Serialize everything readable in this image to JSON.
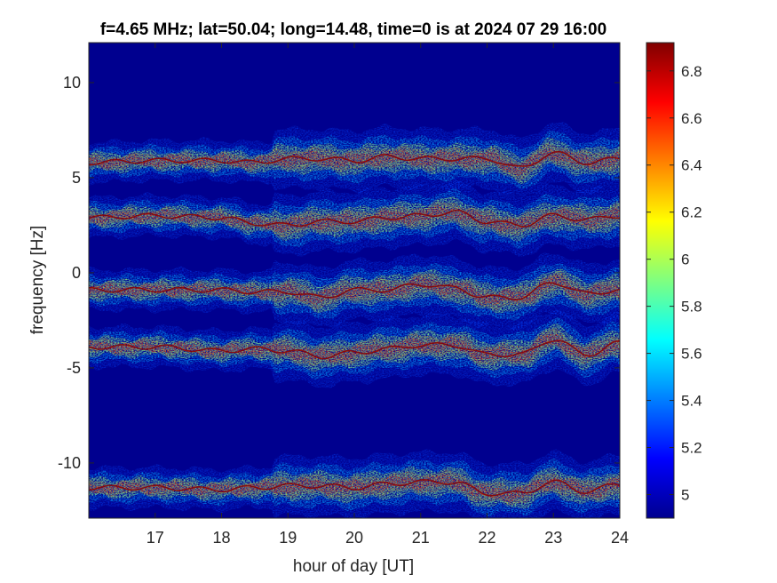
{
  "chart_data": {
    "type": "heatmap",
    "title": "f=4.65 MHz;  lat=50.04; long=14.48, time=0 is at 2024 07 29 16:00",
    "xlabel": "hour of day [UT]",
    "ylabel": "frequency [Hz]",
    "xlim": [
      16,
      24
    ],
    "ylim": [
      -12.9,
      12.1
    ],
    "x_ticks": [
      17,
      18,
      19,
      20,
      21,
      22,
      23,
      24
    ],
    "y_ticks": [
      10,
      5,
      0,
      -5,
      -10
    ],
    "colorbar": {
      "colormap": "jet",
      "clim": [
        4.9,
        6.92
      ],
      "ticks": [
        5,
        5.2,
        5.4,
        5.6,
        5.8,
        6,
        6.2,
        6.4,
        6.6,
        6.8
      ]
    },
    "series": [
      {
        "x": [
          16.0,
          17.0,
          18.0,
          18.5,
          19.0,
          19.5,
          20.0,
          20.5,
          21.0,
          21.5,
          22.0,
          22.5,
          23.0,
          23.5,
          24.0
        ],
        "y": [
          5.8,
          5.9,
          5.9,
          5.8,
          6.0,
          6.0,
          5.9,
          6.1,
          6.0,
          6.0,
          6.0,
          5.5,
          6.3,
          5.8,
          6.0
        ]
      },
      {
        "x": [
          16.0,
          17.0,
          18.0,
          18.5,
          19.0,
          19.5,
          20.0,
          20.5,
          21.0,
          21.5,
          22.0,
          22.5,
          23.0,
          23.5,
          24.0
        ],
        "y": [
          2.9,
          3.0,
          2.9,
          2.6,
          2.5,
          2.7,
          2.7,
          2.9,
          3.0,
          3.2,
          2.7,
          2.5,
          3.0,
          2.8,
          3.0
        ]
      },
      {
        "x": [
          16.0,
          17.0,
          18.0,
          18.5,
          19.0,
          19.5,
          20.0,
          20.5,
          21.0,
          21.5,
          22.0,
          22.5,
          23.0,
          23.5,
          24.0
        ],
        "y": [
          -0.9,
          -0.9,
          -0.9,
          -1.0,
          -1.0,
          -1.3,
          -0.9,
          -0.9,
          -0.6,
          -0.8,
          -1.3,
          -1.3,
          -0.5,
          -1.1,
          -0.9
        ]
      },
      {
        "x": [
          16.0,
          17.0,
          18.0,
          18.5,
          19.0,
          19.5,
          20.0,
          20.5,
          21.0,
          21.5,
          22.0,
          22.5,
          23.0,
          23.5,
          24.0
        ],
        "y": [
          -3.9,
          -3.9,
          -4.1,
          -4.0,
          -4.1,
          -4.4,
          -4.2,
          -4.0,
          -3.8,
          -3.8,
          -4.3,
          -4.3,
          -3.5,
          -4.3,
          -3.7
        ]
      },
      {
        "x": [
          16.0,
          17.0,
          18.0,
          18.5,
          19.0,
          19.5,
          20.0,
          20.5,
          21.0,
          21.5,
          22.0,
          22.5,
          23.0,
          23.5,
          24.0
        ],
        "y": [
          -11.3,
          -11.3,
          -11.4,
          -11.3,
          -11.2,
          -11.2,
          -11.3,
          -11.1,
          -11.0,
          -11.0,
          -11.6,
          -11.6,
          -11.0,
          -11.5,
          -11.1
        ]
      }
    ]
  }
}
